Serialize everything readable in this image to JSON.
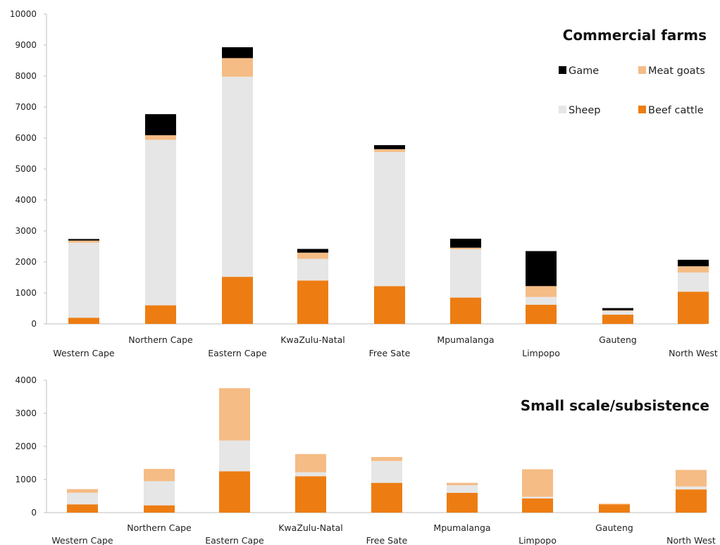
{
  "chart_data": [
    {
      "type": "bar",
      "stacked": true,
      "title": "Commercial farms",
      "categories": [
        "Western Cape",
        "Northern Cape",
        "Eastern Cape",
        "KwaZulu-Natal",
        "Free Sate",
        "Mpumalanga",
        "Limpopo",
        "Gauteng",
        "North West"
      ],
      "series": [
        {
          "name": "Beef cattle",
          "color": "#ED7D12",
          "values": [
            200,
            600,
            1520,
            1400,
            1220,
            850,
            620,
            300,
            1040
          ]
        },
        {
          "name": "Sheep",
          "color": "#E6E6E6",
          "values": [
            2420,
            5340,
            6460,
            700,
            4330,
            1560,
            250,
            120,
            620
          ]
        },
        {
          "name": "Meat goats",
          "color": "#F5BC85",
          "values": [
            70,
            150,
            600,
            200,
            90,
            50,
            350,
            20,
            200
          ]
        },
        {
          "name": "Game",
          "color": "#000000",
          "values": [
            50,
            680,
            350,
            120,
            130,
            290,
            1130,
            70,
            210
          ]
        }
      ],
      "ylim": [
        0,
        10000
      ],
      "yticks": [
        0,
        1000,
        2000,
        3000,
        4000,
        5000,
        6000,
        7000,
        8000,
        9000,
        10000
      ],
      "legend_order": [
        "Game",
        "Meat goats",
        "Sheep",
        "Beef cattle"
      ],
      "legend_position": "top-right",
      "grid": false
    },
    {
      "type": "bar",
      "stacked": true,
      "title": "Small scale/subsistence",
      "categories": [
        "Western Cape",
        "Northern Cape",
        "Eastern Cape",
        "KwaZulu-Natal",
        "Free Sate",
        "Mpumalanga",
        "Limpopo",
        "Gauteng",
        "North West"
      ],
      "series": [
        {
          "name": "Beef cattle",
          "color": "#ED7D12",
          "values": [
            250,
            220,
            1250,
            1100,
            900,
            600,
            430,
            250,
            700
          ]
        },
        {
          "name": "Sheep",
          "color": "#E6E6E6",
          "values": [
            350,
            730,
            930,
            120,
            660,
            230,
            50,
            0,
            90
          ]
        },
        {
          "name": "Meat goats",
          "color": "#F5BC85",
          "values": [
            110,
            370,
            1580,
            550,
            120,
            70,
            830,
            20,
            500
          ]
        }
      ],
      "ylim": [
        0,
        4000
      ],
      "yticks": [
        0,
        1000,
        2000,
        3000,
        4000
      ],
      "grid": false
    }
  ]
}
